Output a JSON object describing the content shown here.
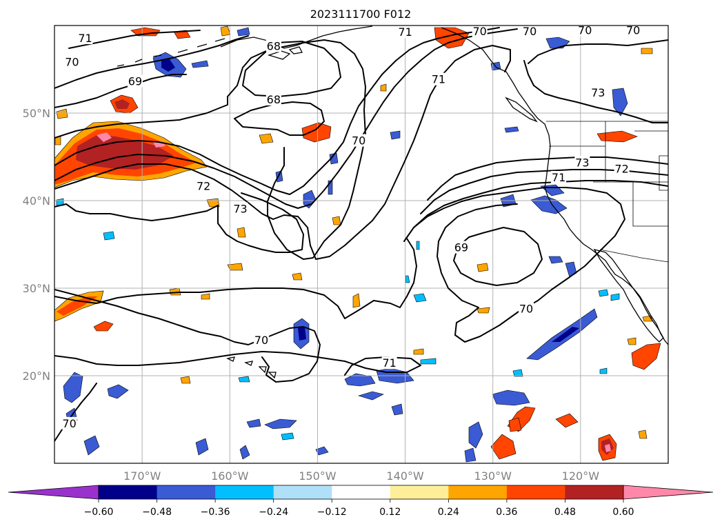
{
  "title": "2023111700 F012",
  "map": {
    "lon_range": [
      -180,
      -110
    ],
    "lat_range": [
      10,
      60
    ],
    "lon_ticks": [
      {
        "lon": -170,
        "label": "170°W"
      },
      {
        "lon": -160,
        "label": "160°W"
      },
      {
        "lon": -150,
        "label": "150°W"
      },
      {
        "lon": -140,
        "label": "140°W"
      },
      {
        "lon": -130,
        "label": "130°W"
      },
      {
        "lon": -120,
        "label": "120°W"
      }
    ],
    "lat_ticks": [
      {
        "lat": 20,
        "label": "20°N"
      },
      {
        "lat": 30,
        "label": "30°N"
      },
      {
        "lat": 40,
        "label": "40°N"
      },
      {
        "lat": 50,
        "label": "50°N"
      }
    ],
    "grid": true,
    "contour_labels": [
      {
        "text": "71",
        "lon": -176.5,
        "lat": 58.5
      },
      {
        "text": "70",
        "lon": -178.0,
        "lat": 55.8
      },
      {
        "text": "69",
        "lon": -170.8,
        "lat": 53.6
      },
      {
        "text": "68",
        "lon": -155.0,
        "lat": 57.6
      },
      {
        "text": "68",
        "lon": -155.0,
        "lat": 51.5
      },
      {
        "text": "71",
        "lon": -140.0,
        "lat": 59.2
      },
      {
        "text": "71",
        "lon": -136.2,
        "lat": 53.8
      },
      {
        "text": "70",
        "lon": -131.5,
        "lat": 59.3
      },
      {
        "text": "70",
        "lon": -125.8,
        "lat": 59.3
      },
      {
        "text": "70",
        "lon": -119.5,
        "lat": 59.4
      },
      {
        "text": "70",
        "lon": -114.0,
        "lat": 59.4
      },
      {
        "text": "70",
        "lon": -145.3,
        "lat": 46.8
      },
      {
        "text": "73",
        "lon": -118.0,
        "lat": 52.3
      },
      {
        "text": "73",
        "lon": -119.8,
        "lat": 44.3
      },
      {
        "text": "72",
        "lon": -115.3,
        "lat": 43.6
      },
      {
        "text": "71",
        "lon": -122.5,
        "lat": 42.6
      },
      {
        "text": "72",
        "lon": -163.0,
        "lat": 41.6
      },
      {
        "text": "73",
        "lon": -158.8,
        "lat": 39.0
      },
      {
        "text": "69",
        "lon": -133.6,
        "lat": 34.6
      },
      {
        "text": "70",
        "lon": -126.2,
        "lat": 27.6
      },
      {
        "text": "70",
        "lon": -156.4,
        "lat": 24.0
      },
      {
        "text": "71",
        "lon": -141.8,
        "lat": 21.4
      },
      {
        "text": "70",
        "lon": -178.3,
        "lat": 14.5
      }
    ]
  },
  "colorbar": {
    "levels": [
      "-0.60",
      "-0.48",
      "-0.36",
      "-0.24",
      "-0.12",
      "0.12",
      "0.24",
      "0.36",
      "0.48",
      "0.60"
    ],
    "colors": [
      "#9932cc",
      "#00008b",
      "#3a5bd4",
      "#00bfff",
      "#b0e0f8",
      "#ffffff",
      "#ffee99",
      "#ffa500",
      "#ff4500",
      "#b22222",
      "#ff88aa"
    ],
    "extend": "both"
  }
}
